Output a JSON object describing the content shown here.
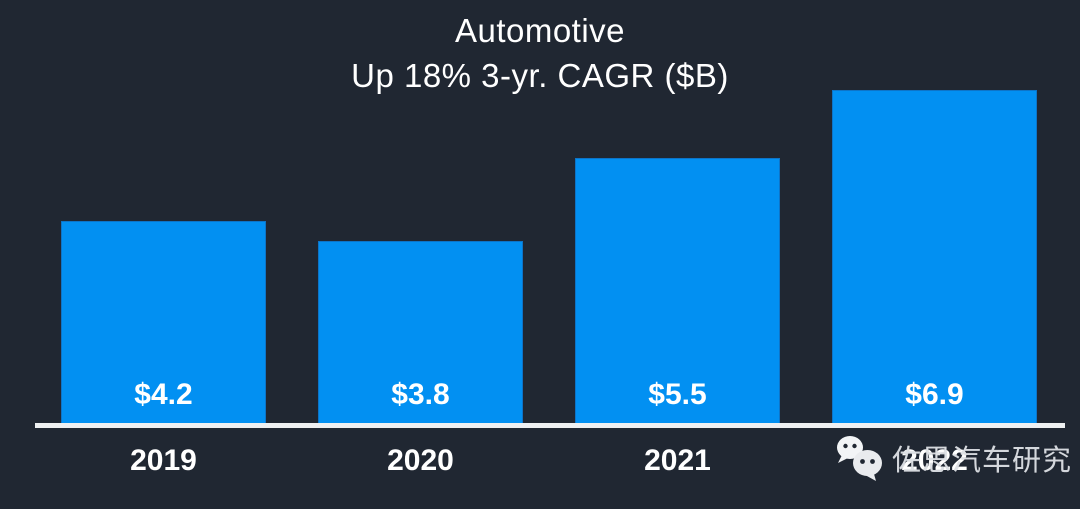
{
  "title": {
    "line1": "Automotive",
    "line2": "Up 18% 3-yr. CAGR ($B)"
  },
  "chart_data": {
    "type": "bar",
    "title": "Automotive",
    "subtitle": "Up 18% 3-yr. CAGR ($B)",
    "xlabel": "",
    "ylabel": "",
    "categories": [
      "2019",
      "2020",
      "2021",
      "2022"
    ],
    "values": [
      4.2,
      3.8,
      5.5,
      6.9
    ],
    "value_labels": [
      "$4.2",
      "$3.8",
      "$5.5",
      "$6.9"
    ],
    "units": "$B",
    "cagr_note": "Up 18% 3-yr. CAGR",
    "ylim": [
      0,
      7.0
    ],
    "grid": false,
    "legend": false,
    "bar_color": "#0290f2",
    "background_color": "#202732",
    "text_color": "#ffffff",
    "axis_line_color": "#eef0f2"
  },
  "watermark": {
    "icon": "wechat-icon",
    "text": "佐思汽车研究"
  }
}
